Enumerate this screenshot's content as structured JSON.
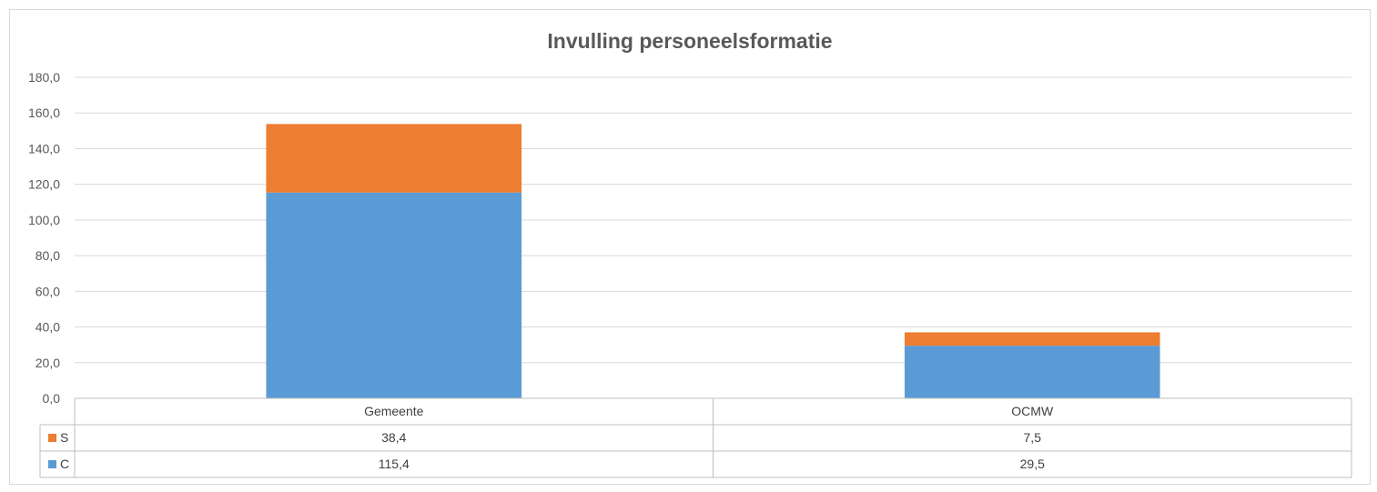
{
  "chart_data": {
    "type": "bar",
    "stacked": true,
    "title": "Invulling personeelsformatie",
    "categories": [
      "Gemeente",
      "OCMW"
    ],
    "series": [
      {
        "name": "C",
        "color": "#5b9bd5",
        "values": [
          115.4,
          29.5
        ],
        "display_values": [
          "115,4",
          "29,5"
        ]
      },
      {
        "name": "S",
        "color": "#ed7d31",
        "values": [
          38.4,
          7.5
        ],
        "display_values": [
          "38,4",
          "7,5"
        ]
      }
    ],
    "ylim": [
      0,
      180
    ],
    "yticks": [
      "0,0",
      "20,0",
      "40,0",
      "60,0",
      "80,0",
      "100,0",
      "120,0",
      "140,0",
      "160,0",
      "180,0"
    ],
    "grid": true,
    "legend": "data-table"
  }
}
